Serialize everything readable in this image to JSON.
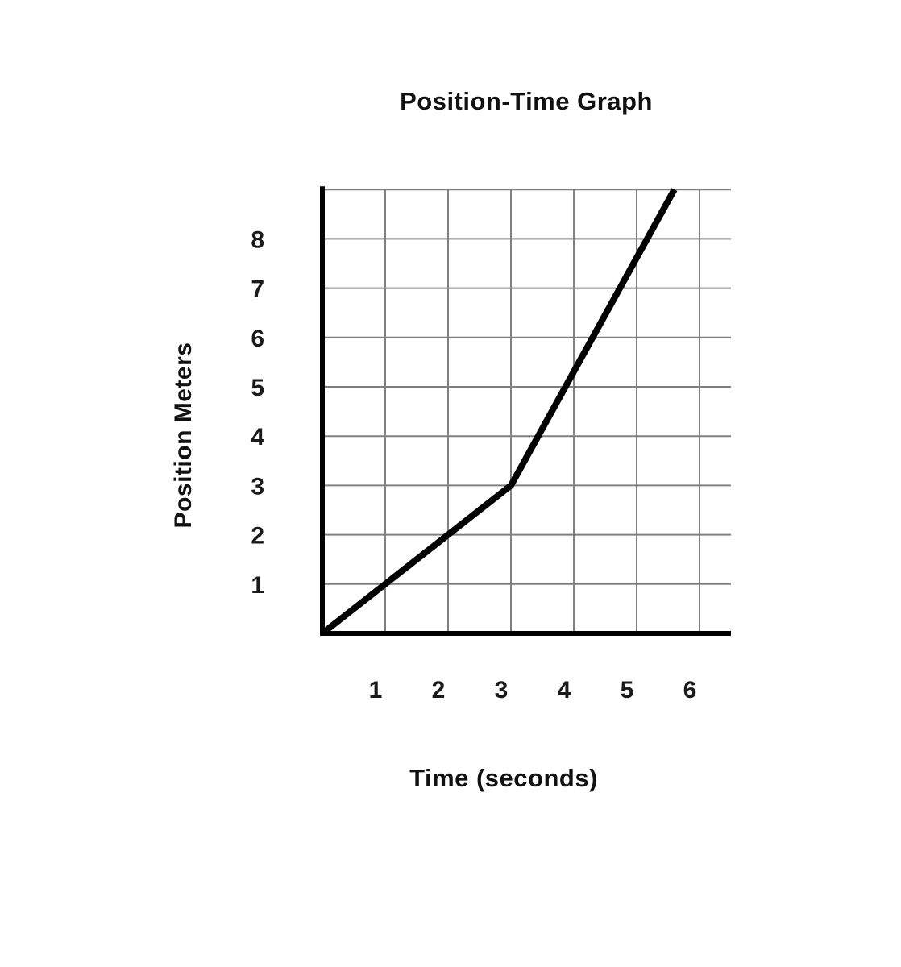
{
  "chart_data": {
    "type": "line",
    "title": "Position-Time Graph",
    "xlabel": "Time (seconds)",
    "ylabel": "Position Meters",
    "x_ticks": [
      1,
      2,
      3,
      4,
      5,
      6
    ],
    "y_ticks": [
      1,
      2,
      3,
      4,
      5,
      6,
      7,
      8
    ],
    "xlim": [
      0,
      6.5
    ],
    "ylim": [
      0,
      9
    ],
    "grid": true,
    "legend": false,
    "series": [
      {
        "name": "position",
        "points": [
          [
            0,
            0
          ],
          [
            3,
            3
          ],
          [
            5.6,
            9
          ]
        ]
      }
    ],
    "colors": {
      "line": "#000000",
      "axis": "#000000",
      "grid": "#808080",
      "text": "#1a1a1a",
      "background": "#ffffff"
    }
  }
}
